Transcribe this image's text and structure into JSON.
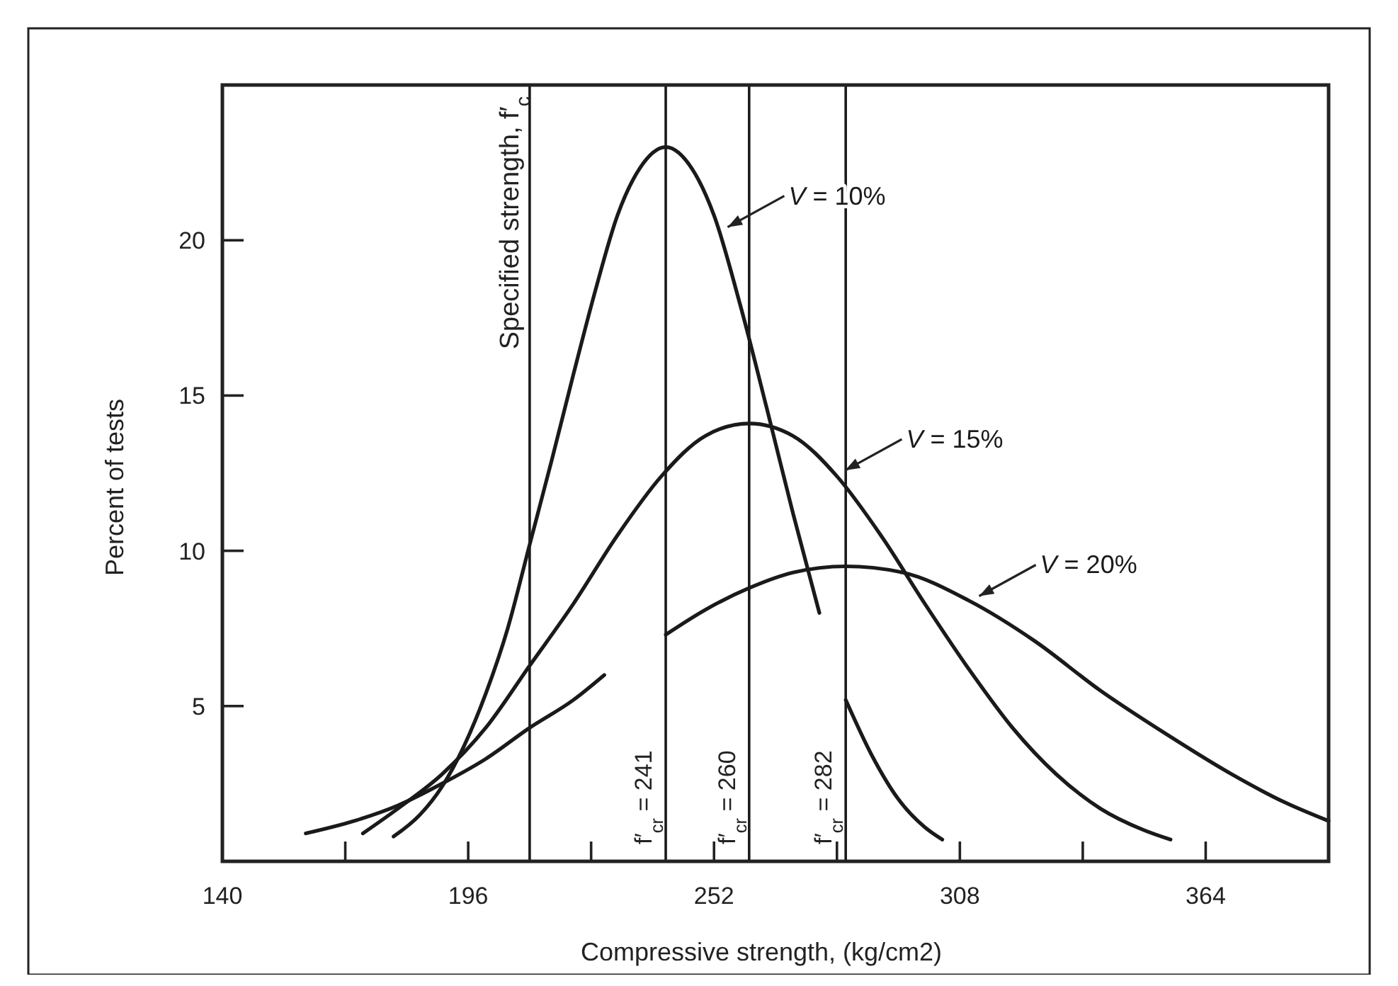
{
  "chart_data": {
    "type": "line",
    "xlabel": "Compressive strength,  (kg/cm2)",
    "ylabel": "Percent of tests",
    "xlim": [
      140,
      392
    ],
    "ylim": [
      0,
      25
    ],
    "xticks": [
      140,
      {
        "value": 168,
        "label": null
      },
      196,
      {
        "value": 224,
        "label": null
      },
      252,
      {
        "value": 280,
        "label": null
      },
      308,
      {
        "value": 336,
        "label": null
      },
      364
    ],
    "yticks": [
      5,
      10,
      15,
      20
    ],
    "grid": false,
    "legend": "right",
    "series": [
      {
        "name": "V = 10%",
        "color": "#1a1a1a",
        "x": [
          179,
          185,
          190,
          195,
          200,
          205,
          210,
          215,
          220,
          225,
          230,
          235,
          241,
          247,
          252,
          258,
          264,
          270,
          276,
          279,
          282,
          288,
          294,
          300,
          304
        ],
        "values": [
          0.8,
          1.5,
          2.4,
          3.7,
          5.4,
          7.5,
          10.2,
          12.9,
          15.7,
          18.4,
          20.8,
          22.3,
          23,
          22.3,
          20.8,
          17.9,
          14.6,
          11.2,
          8.0,
          null,
          5.2,
          3.4,
          2.0,
          1.1,
          0.7
        ]
      },
      {
        "name": "V = 15%",
        "color": "#1a1a1a",
        "x": [
          172,
          180,
          190,
          200,
          210,
          220,
          230,
          240,
          250,
          260,
          270,
          280,
          290,
          300,
          310,
          320,
          330,
          340,
          350,
          356
        ],
        "values": [
          0.9,
          1.7,
          2.8,
          4.3,
          6.3,
          8.3,
          10.5,
          12.4,
          13.7,
          14.1,
          13.7,
          12.4,
          10.5,
          8.3,
          6.2,
          4.3,
          2.8,
          1.7,
          1.0,
          0.7
        ]
      },
      {
        "name": "V = 20%",
        "color": "#1a1a1a",
        "x": [
          159,
          170,
          180,
          190,
          200,
          210,
          220,
          227,
          234,
          241,
          250,
          260,
          270,
          282,
          295,
          310,
          325,
          340,
          355,
          370,
          382,
          392
        ],
        "values": [
          0.9,
          1.3,
          1.8,
          2.5,
          3.3,
          4.3,
          5.2,
          6.0,
          null,
          7.3,
          8.1,
          8.8,
          9.3,
          9.5,
          9.3,
          8.4,
          7.1,
          5.5,
          4.1,
          2.8,
          1.9,
          1.3
        ]
      }
    ],
    "ref_lines": [
      {
        "axis": "x",
        "value": 210,
        "label": "Specified strength, f′$_{c}$",
        "color": "#1a1a1a"
      },
      {
        "axis": "x",
        "value": 241,
        "label": "f′$_{cr}$ =  241",
        "color": "#1a1a1a"
      },
      {
        "axis": "x",
        "value": 260,
        "label": "f′$_{cr}$ =  260",
        "color": "#1a1a1a"
      },
      {
        "axis": "x",
        "value": 282,
        "label": "f′$_{cr}$ =  282",
        "color": "#1a1a1a"
      }
    ]
  }
}
